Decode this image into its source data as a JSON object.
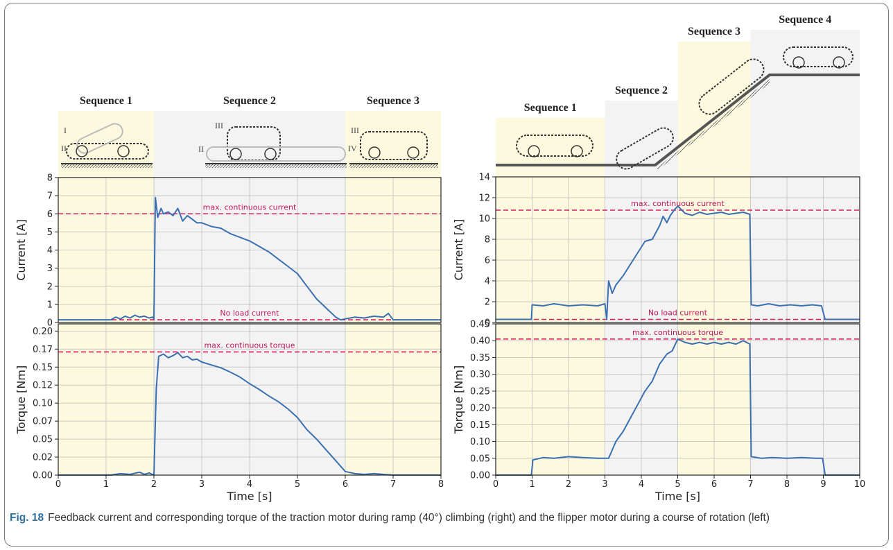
{
  "caption": {
    "label": "Fig. 18",
    "text": "Feedback current and corresponding torque of the traction motor during ramp (40°) climbing (right) and the flipper motor during a course of rotation (left)"
  },
  "colors": {
    "series": "#3a6fb0",
    "threshold": "#d81b60",
    "sequence_yellow": "#fcf9de",
    "sequence_gray": "#f3f3f3"
  },
  "chart_data": [
    {
      "id": "left",
      "type": "line",
      "description": "Flipper motor during a course of rotation",
      "xlabel": "Time [s]",
      "xlim": [
        0,
        8
      ],
      "xticks": [
        0,
        1,
        2,
        3,
        4,
        5,
        6,
        7,
        8
      ],
      "grid": true,
      "sequences": [
        {
          "label": "Sequence 1",
          "start": 0,
          "end": 2,
          "shade": "yellow",
          "markers": [
            "I",
            "II"
          ]
        },
        {
          "label": "Sequence 2",
          "start": 2,
          "end": 6,
          "shade": "gray",
          "markers": [
            "III",
            "II"
          ]
        },
        {
          "label": "Sequence 3",
          "start": 6,
          "end": 8,
          "shade": "yellow",
          "markers": [
            "III",
            "IV"
          ]
        }
      ],
      "panels": [
        {
          "ylabel": "Current [A]",
          "ylim": [
            0,
            8
          ],
          "yticks": [
            "0",
            "1",
            "2",
            "3",
            "4",
            "5",
            "6",
            "7",
            "8"
          ],
          "ytick_values": [
            0,
            1,
            2,
            3,
            4,
            5,
            6,
            7,
            8
          ],
          "thresholds": [
            {
              "label": "max. continuous current",
              "value": 6.0
            },
            {
              "label": "No load current",
              "value": 0.15
            }
          ],
          "series": [
            {
              "x": [
                0,
                1.1,
                1.2,
                1.3,
                1.4,
                1.5,
                1.6,
                1.7,
                1.8,
                1.9,
                1.97,
                2.0,
                2.03,
                2.08,
                2.15,
                2.2,
                2.3,
                2.4,
                2.5,
                2.6,
                2.7,
                2.8,
                2.9,
                3.0,
                3.2,
                3.4,
                3.6,
                3.8,
                4.0,
                4.2,
                4.4,
                4.6,
                4.8,
                5.0,
                5.2,
                5.4,
                5.6,
                5.8,
                5.9,
                6.0,
                6.2,
                6.4,
                6.6,
                6.8,
                6.9,
                7.0,
                8.0
              ],
              "y": [
                0.15,
                0.15,
                0.3,
                0.2,
                0.35,
                0.25,
                0.4,
                0.3,
                0.35,
                0.25,
                0.3,
                0.2,
                6.9,
                5.8,
                6.3,
                6.0,
                6.1,
                5.9,
                6.3,
                5.6,
                5.9,
                5.7,
                5.5,
                5.5,
                5.3,
                5.2,
                4.9,
                4.7,
                4.5,
                4.2,
                3.9,
                3.5,
                3.1,
                2.7,
                2.0,
                1.3,
                0.8,
                0.3,
                0.15,
                0.2,
                0.3,
                0.25,
                0.35,
                0.3,
                0.5,
                0.15,
                0.15
              ]
            }
          ]
        },
        {
          "ylabel": "Torque [Nm]",
          "ylim": [
            0,
            0.21
          ],
          "yticks": [
            "0.00",
            "0.02",
            "0.05",
            "0.07",
            "0.10",
            "0.12",
            "0.15",
            "0.17",
            "0.20"
          ],
          "ytick_values": [
            0.0,
            0.025,
            0.05,
            0.075,
            0.1,
            0.125,
            0.15,
            0.175,
            0.2
          ],
          "thresholds": [
            {
              "label": "max. continuous torque",
              "value": 0.171
            }
          ],
          "series": [
            {
              "x": [
                0,
                1.1,
                1.3,
                1.5,
                1.7,
                1.8,
                1.9,
                2.0,
                2.05,
                2.1,
                2.2,
                2.3,
                2.4,
                2.5,
                2.6,
                2.7,
                2.8,
                2.9,
                3.0,
                3.2,
                3.4,
                3.6,
                3.8,
                4.0,
                4.2,
                4.4,
                4.6,
                4.8,
                5.0,
                5.2,
                5.4,
                5.6,
                5.8,
                6.0,
                6.2,
                6.4,
                6.6,
                6.8,
                7.0,
                8.0
              ],
              "y": [
                0.0,
                0.0,
                0.002,
                0.001,
                0.004,
                0.001,
                0.003,
                0.0,
                0.12,
                0.165,
                0.168,
                0.163,
                0.166,
                0.17,
                0.163,
                0.165,
                0.16,
                0.161,
                0.157,
                0.153,
                0.149,
                0.143,
                0.136,
                0.127,
                0.119,
                0.11,
                0.102,
                0.092,
                0.08,
                0.063,
                0.05,
                0.035,
                0.02,
                0.005,
                0.002,
                0.001,
                0.002,
                0.001,
                0.0,
                0.0
              ]
            }
          ]
        }
      ]
    },
    {
      "id": "right",
      "type": "line",
      "description": "Traction motor during ramp (40°) climbing",
      "xlabel": "Time [s]",
      "xlim": [
        0,
        10
      ],
      "xticks": [
        0,
        1,
        2,
        3,
        4,
        5,
        6,
        7,
        8,
        9,
        10
      ],
      "grid": true,
      "sequences": [
        {
          "label": "Sequence 1",
          "start": 0,
          "end": 3,
          "shade": "yellow",
          "markers": []
        },
        {
          "label": "Sequence 2",
          "start": 3,
          "end": 5,
          "shade": "gray",
          "markers": []
        },
        {
          "label": "Sequence 3",
          "start": 5,
          "end": 7,
          "shade": "yellow",
          "markers": []
        },
        {
          "label": "Sequence 4",
          "start": 7,
          "end": 10,
          "shade": "gray",
          "markers": []
        }
      ],
      "panels": [
        {
          "ylabel": "Current [A]",
          "ylim": [
            0,
            14
          ],
          "yticks": [
            "0",
            "2",
            "4",
            "6",
            "8",
            "10",
            "12",
            "14"
          ],
          "ytick_values": [
            0,
            2,
            4,
            6,
            8,
            10,
            12,
            14
          ],
          "thresholds": [
            {
              "label": "max. continuous current",
              "value": 10.8
            },
            {
              "label": "No load current",
              "value": 0.3
            }
          ],
          "series": [
            {
              "x": [
                0,
                0.98,
                1.0,
                1.3,
                1.6,
                2.0,
                2.4,
                2.8,
                3.0,
                3.05,
                3.1,
                3.2,
                3.3,
                3.5,
                3.7,
                3.9,
                4.1,
                4.3,
                4.5,
                4.6,
                4.7,
                4.8,
                4.9,
                5.0,
                5.2,
                5.4,
                5.6,
                5.8,
                6.0,
                6.2,
                6.4,
                6.6,
                6.8,
                6.98,
                7.02,
                7.2,
                7.5,
                7.8,
                8.1,
                8.4,
                8.7,
                8.95,
                9.05,
                10.0
              ],
              "y": [
                0.3,
                0.3,
                1.7,
                1.6,
                1.8,
                1.6,
                1.7,
                1.6,
                1.8,
                0.3,
                4.0,
                2.8,
                3.6,
                4.5,
                5.6,
                6.7,
                7.8,
                8.0,
                9.3,
                10.2,
                9.6,
                10.3,
                10.8,
                11.2,
                10.5,
                10.3,
                10.6,
                10.4,
                10.5,
                10.6,
                10.4,
                10.5,
                10.6,
                10.4,
                1.7,
                1.6,
                1.8,
                1.6,
                1.7,
                1.6,
                1.7,
                1.6,
                0.3,
                0.3
              ]
            }
          ]
        },
        {
          "ylabel": "Torque [Nm]",
          "ylim": [
            0,
            0.45
          ],
          "yticks": [
            "0.00",
            "0.05",
            "0.10",
            "0.15",
            "0.20",
            "0.25",
            "0.30",
            "0.35",
            "0.40",
            "0.45"
          ],
          "ytick_values": [
            0,
            0.05,
            0.1,
            0.15,
            0.2,
            0.25,
            0.3,
            0.35,
            0.4,
            0.45
          ],
          "thresholds": [
            {
              "label": "max. continuous torque",
              "value": 0.405
            }
          ],
          "series": [
            {
              "x": [
                0,
                0.98,
                1.02,
                1.3,
                1.6,
                2.0,
                2.4,
                2.8,
                3.05,
                3.1,
                3.3,
                3.5,
                3.7,
                3.9,
                4.1,
                4.3,
                4.5,
                4.7,
                4.85,
                5.0,
                5.2,
                5.4,
                5.6,
                5.8,
                6.0,
                6.2,
                6.4,
                6.6,
                6.8,
                6.98,
                7.02,
                7.3,
                7.6,
                8.0,
                8.4,
                8.8,
                8.98,
                9.05,
                10.0
              ],
              "y": [
                0.0,
                0.0,
                0.045,
                0.052,
                0.05,
                0.055,
                0.052,
                0.05,
                0.05,
                0.05,
                0.1,
                0.13,
                0.17,
                0.21,
                0.25,
                0.28,
                0.33,
                0.36,
                0.37,
                0.405,
                0.395,
                0.39,
                0.395,
                0.39,
                0.395,
                0.39,
                0.395,
                0.39,
                0.4,
                0.39,
                0.055,
                0.05,
                0.052,
                0.05,
                0.052,
                0.05,
                0.05,
                0.0,
                0.0
              ]
            }
          ]
        }
      ]
    }
  ]
}
